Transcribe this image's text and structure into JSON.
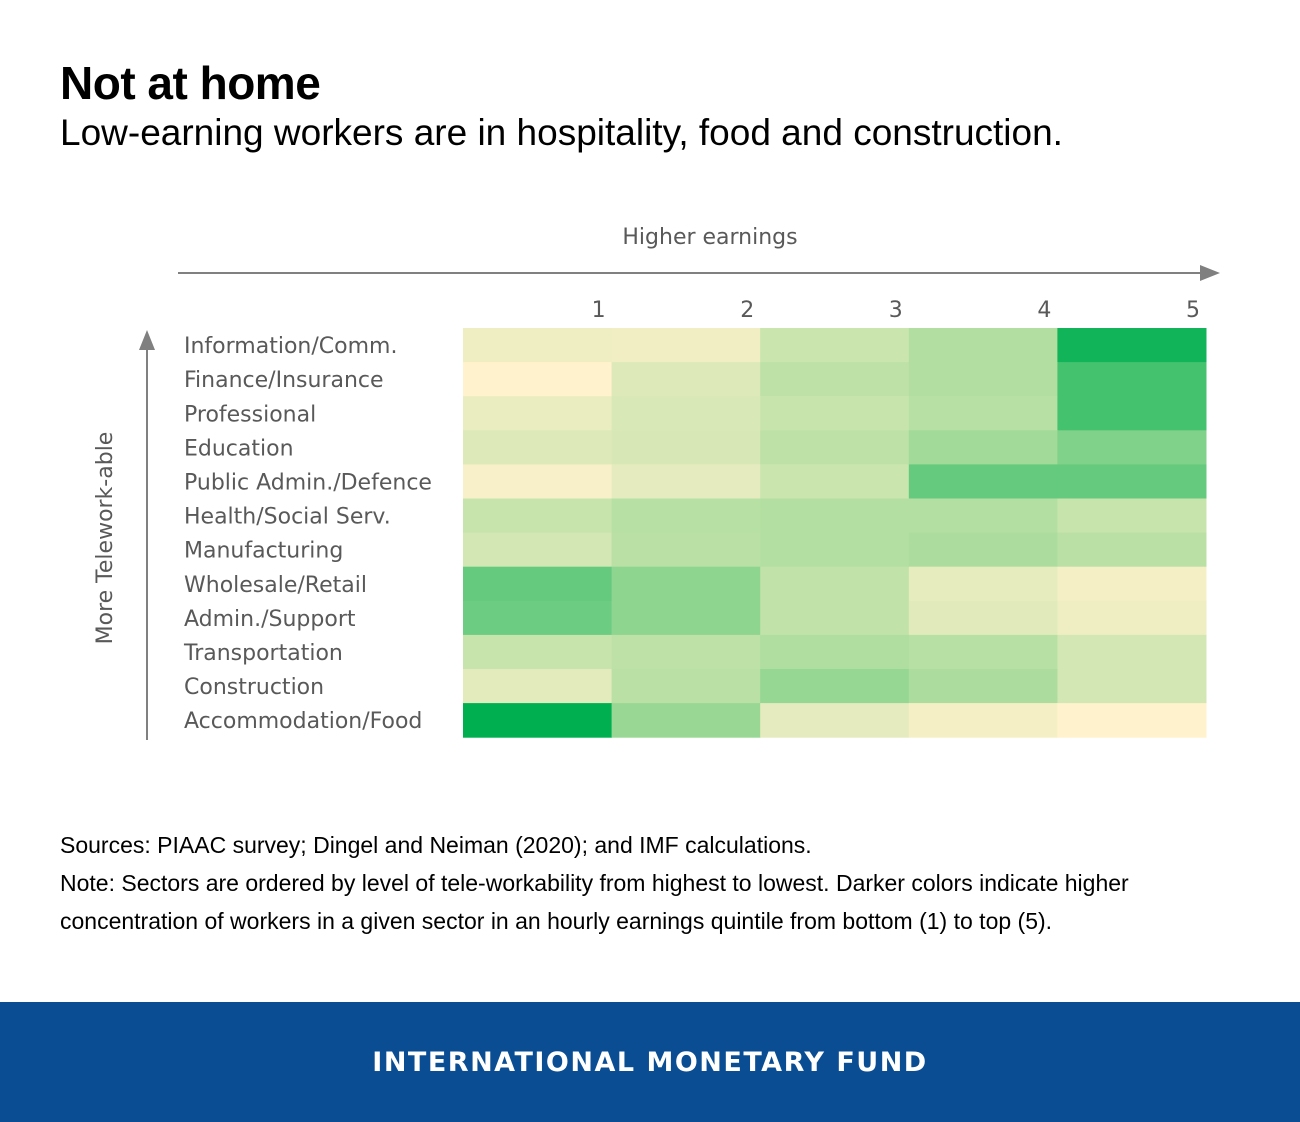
{
  "header": {
    "title": "Not at home",
    "subtitle": "Low-earning workers are in hospitality, food and construction."
  },
  "chart_data": {
    "type": "heatmap",
    "x_axis_title": "Higher earnings",
    "y_axis_title": "More Telework-able",
    "columns": [
      "1",
      "2",
      "3",
      "4",
      "5"
    ],
    "rows": [
      "Information/Comm.",
      "Finance/Insurance",
      "Professional",
      "Education",
      "Public Admin./Defence",
      "Health/Social Serv.",
      "Manufacturing",
      "Wholesale/Retail",
      "Admin./Support",
      "Transportation",
      "Construction",
      "Accommodation/Food"
    ],
    "scale_note": "relative concentration: 0 = lightest (cream), 1 = darkest green",
    "values": [
      [
        0.1,
        0.08,
        0.3,
        0.45,
        0.95
      ],
      [
        0.0,
        0.2,
        0.38,
        0.45,
        0.8
      ],
      [
        0.12,
        0.22,
        0.32,
        0.42,
        0.8
      ],
      [
        0.2,
        0.23,
        0.38,
        0.52,
        0.62
      ],
      [
        0.04,
        0.15,
        0.3,
        0.7,
        0.7
      ],
      [
        0.32,
        0.42,
        0.44,
        0.44,
        0.32
      ],
      [
        0.26,
        0.4,
        0.44,
        0.48,
        0.4
      ],
      [
        0.7,
        0.58,
        0.36,
        0.14,
        0.06
      ],
      [
        0.68,
        0.58,
        0.36,
        0.18,
        0.1
      ],
      [
        0.32,
        0.38,
        0.46,
        0.42,
        0.26
      ],
      [
        0.16,
        0.4,
        0.56,
        0.48,
        0.26
      ],
      [
        1.0,
        0.55,
        0.15,
        0.06,
        0.0
      ]
    ],
    "colors": {
      "low": "#fff2cc",
      "mid": "#a9dc9c",
      "high": "#00b050",
      "axis": "#808080",
      "label": "#595959"
    }
  },
  "notes": {
    "sources": "Sources: PIAAC survey; Dingel and Neiman (2020); and IMF calculations.",
    "note": "Note: Sectors are ordered by level of tele-workability from highest to lowest. Darker colors indicate higher concentration of workers in a given sector in an hourly earnings quintile from bottom (1) to top (5)."
  },
  "footer": {
    "org": "INTERNATIONAL MONETARY FUND",
    "color": "#0a4d93"
  }
}
